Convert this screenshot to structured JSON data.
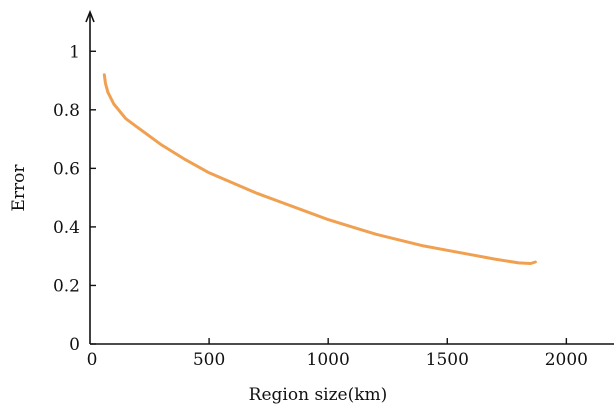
{
  "chart_data": {
    "type": "line",
    "title": "",
    "xlabel": "Region size(km)",
    "ylabel": "Error",
    "xlim": [
      0,
      2200
    ],
    "ylim": [
      0,
      1.1
    ],
    "xticks": [
      0,
      500,
      1000,
      1500,
      2000
    ],
    "yticks": [
      0,
      0.2,
      0.4,
      0.6,
      0.8,
      1
    ],
    "xtick_labels": [
      "0",
      "500",
      "1000",
      "1500",
      "2000"
    ],
    "ytick_labels": [
      "0",
      "0.2",
      "0.4",
      "0.6",
      "0.8",
      "1"
    ],
    "grid": false,
    "series": [
      {
        "color": "#f0a050",
        "x": [
          60,
          65,
          75,
          100,
          150,
          200,
          300,
          400,
          500,
          600,
          700,
          800,
          900,
          1000,
          1100,
          1200,
          1300,
          1400,
          1500,
          1600,
          1700,
          1800,
          1850,
          1870
        ],
        "y": [
          0.92,
          0.89,
          0.86,
          0.82,
          0.77,
          0.74,
          0.68,
          0.63,
          0.585,
          0.55,
          0.515,
          0.485,
          0.455,
          0.425,
          0.4,
          0.375,
          0.355,
          0.335,
          0.32,
          0.305,
          0.29,
          0.277,
          0.275,
          0.28
        ]
      }
    ]
  }
}
